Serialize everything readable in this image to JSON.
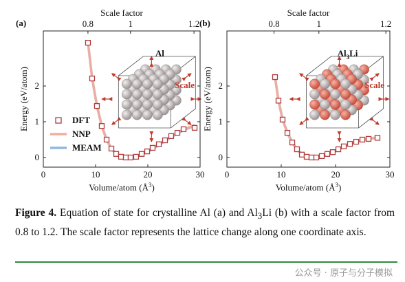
{
  "chart_data": [
    {
      "type": "line",
      "panel_label": "(a)",
      "x2label": "Scale factor",
      "ylabel": "Energy (eV/atom)",
      "xlabel": [
        "Volume/atom (Å",
        "3",
        ")"
      ],
      "inset_label": [
        "Al"
      ],
      "inset_note": "Scale",
      "xlim": [
        0,
        30
      ],
      "xticks": [
        0,
        10,
        20,
        30
      ],
      "ylim": [
        -0.27,
        3.54
      ],
      "yticks": [
        0,
        1,
        2
      ],
      "x2lim": [
        0,
        1.216
      ],
      "x2scale": "cube",
      "x2ticks": [
        0.8,
        1,
        1.2
      ],
      "legend": "lower left",
      "x": [
        8.55,
        9.34,
        10.26,
        11.18,
        12.11,
        13.03,
        13.95,
        14.87,
        15.79,
        16.71,
        17.76,
        18.82,
        19.87,
        20.92,
        22.11,
        23.29,
        24.47,
        25.66,
        26.84,
        28.95
      ],
      "series": [
        {
          "name": "DFT",
          "style": "marker",
          "color": "#b03a3a",
          "values": [
            3.21,
            2.21,
            1.44,
            0.88,
            0.5,
            0.25,
            0.1,
            0.02,
            0,
            0,
            0.02,
            0.1,
            0.17,
            0.27,
            0.37,
            0.48,
            0.6,
            0.69,
            0.79,
            0.83
          ]
        },
        {
          "name": "NNP",
          "style": "line",
          "color": "#f6ab9c",
          "values": [
            3.22,
            2.2,
            1.43,
            0.87,
            0.49,
            0.24,
            0.09,
            0.02,
            0,
            0,
            0.03,
            0.09,
            0.17,
            0.26,
            0.37,
            0.48,
            0.59,
            0.69,
            0.79,
            0.9
          ]
        },
        {
          "name": "MEAM",
          "style": "line",
          "color": "#92b8df",
          "values": [
            3.2,
            2.22,
            1.45,
            0.89,
            0.51,
            0.25,
            0.1,
            0.03,
            0,
            0,
            0.02,
            0.08,
            0.15,
            0.24,
            0.35,
            0.46,
            0.57,
            0.67,
            0.77,
            0.88
          ]
        }
      ]
    },
    {
      "type": "line",
      "panel_label": "(b)",
      "x2label": "Scale factor",
      "ylabel": "Energy (eV/atom)",
      "xlabel": [
        "Volume/atom (Å",
        "3",
        ")"
      ],
      "inset_label": [
        "Al",
        "3",
        "Li"
      ],
      "inset_note": "Scale",
      "xlim": [
        0,
        30
      ],
      "xticks": [
        0,
        10,
        20,
        30
      ],
      "ylim": [
        -0.27,
        3.54
      ],
      "yticks": [
        0,
        1,
        2
      ],
      "x2lim": [
        0,
        1.21
      ],
      "x2scale": "cube",
      "x2ticks": [
        0.8,
        1,
        1.2
      ],
      "x": [
        8.86,
        9.49,
        10.25,
        11.14,
        12.03,
        12.91,
        13.8,
        14.68,
        15.57,
        16.46,
        17.47,
        18.48,
        19.49,
        20.51,
        21.52,
        22.66,
        23.8,
        24.94,
        26.08,
        27.72
      ],
      "series": [
        {
          "name": "DFT",
          "style": "marker",
          "color": "#b03a3a",
          "values": [
            2.25,
            1.59,
            1.06,
            0.69,
            0.42,
            0.23,
            0.08,
            0.02,
            0,
            0,
            0.04,
            0.1,
            0.15,
            0.23,
            0.31,
            0.38,
            0.44,
            0.5,
            0.52,
            0.55
          ]
        },
        {
          "name": "NNP",
          "style": "line",
          "color": "#f6ab9c",
          "values": [
            2.26,
            1.58,
            1.05,
            0.68,
            0.41,
            0.22,
            0.08,
            0.02,
            0,
            0,
            0.04,
            0.1,
            0.16,
            0.23,
            0.31,
            0.38,
            0.44,
            0.49,
            0.53,
            0.56
          ]
        },
        {
          "name": "MEAM",
          "style": "line",
          "color": "#92b8df",
          "values": [
            2.24,
            1.6,
            1.07,
            0.7,
            0.43,
            0.23,
            0.09,
            0.02,
            0,
            0,
            0.03,
            0.09,
            0.15,
            0.22,
            0.3,
            0.37,
            0.43,
            0.48,
            0.52,
            0.55
          ]
        }
      ]
    }
  ],
  "caption": {
    "label": "Figure 4.",
    "runs": [
      "Equation of state for crystalline Al (a) and Al",
      "3",
      "Li (b) with a scale factor from 0.8 to 1.2. The scale factor represents the lattice change along one coordinate axis."
    ]
  },
  "watermark": "公众号 · 原子与分子模拟"
}
